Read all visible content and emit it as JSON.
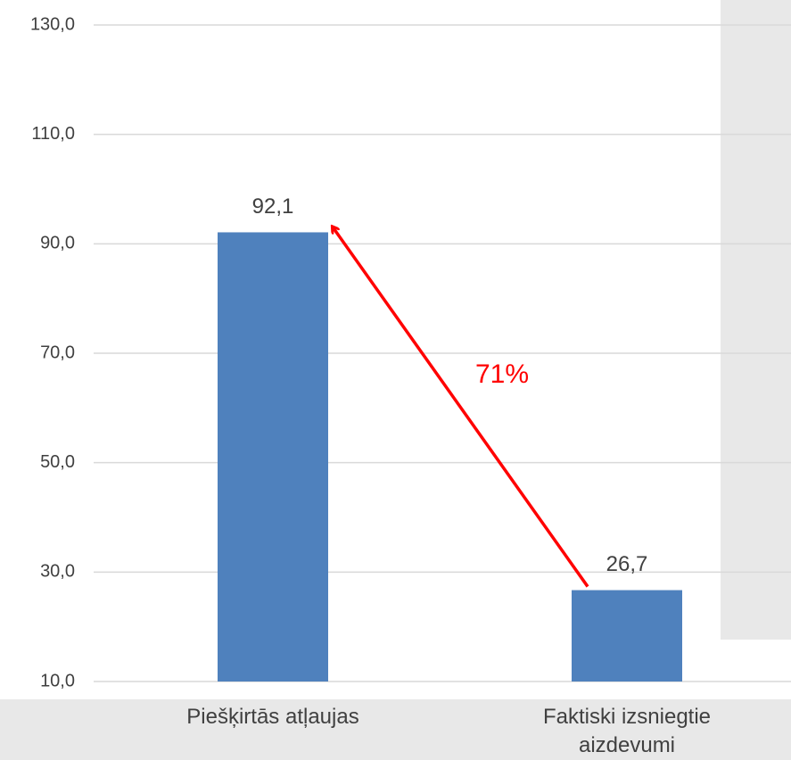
{
  "chart_data": {
    "type": "bar",
    "categories": [
      "Piešķirtās atļaujas",
      "Faktiski izsniegtie aizdevumi"
    ],
    "values": [
      92.1,
      26.7
    ],
    "value_labels": [
      "92,1",
      "26,7"
    ],
    "color": "#4f81bd",
    "ylim": [
      10,
      130
    ],
    "yticks": [
      {
        "value": 10,
        "label": "10,0"
      },
      {
        "value": 30,
        "label": "30,0"
      },
      {
        "value": 50,
        "label": "50,0"
      },
      {
        "value": 70,
        "label": "70,0"
      },
      {
        "value": 90,
        "label": "90,0"
      },
      {
        "value": 110,
        "label": "110,0"
      },
      {
        "value": 130,
        "label": "130,0"
      }
    ],
    "grid": true,
    "annotation": "71%"
  }
}
